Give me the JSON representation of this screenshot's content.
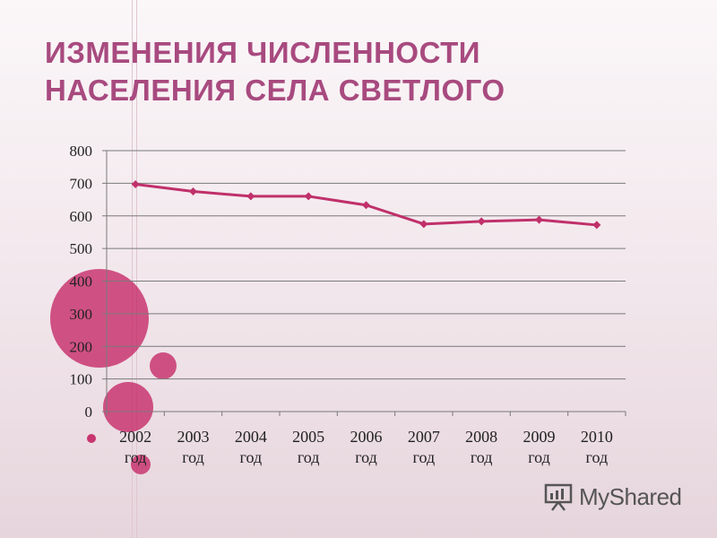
{
  "slide": {
    "title_line1": "ИЗМЕНЕНИЯ ЧИСЛЕННОСТИ",
    "title_line2": "НАСЕЛЕНИЯ СЕЛА СВЕТЛОГО",
    "logo_text": "MyShared",
    "accent_color": "#a84a7f",
    "bubble_color": "#c2185b"
  },
  "chart_data": {
    "type": "line",
    "title": "",
    "xlabel": "",
    "ylabel": "",
    "categories": [
      "2002 год",
      "2003 год",
      "2004 год",
      "2005 год",
      "2006 год",
      "2007 год",
      "2008 год",
      "2009 год",
      "2010 год"
    ],
    "values": [
      697,
      675,
      660,
      660,
      633,
      575,
      583,
      588,
      572
    ],
    "ylim": [
      0,
      800
    ],
    "yticks": [
      0,
      100,
      200,
      300,
      400,
      500,
      600,
      700,
      800
    ],
    "grid": true,
    "line_color": "#c0306a"
  }
}
